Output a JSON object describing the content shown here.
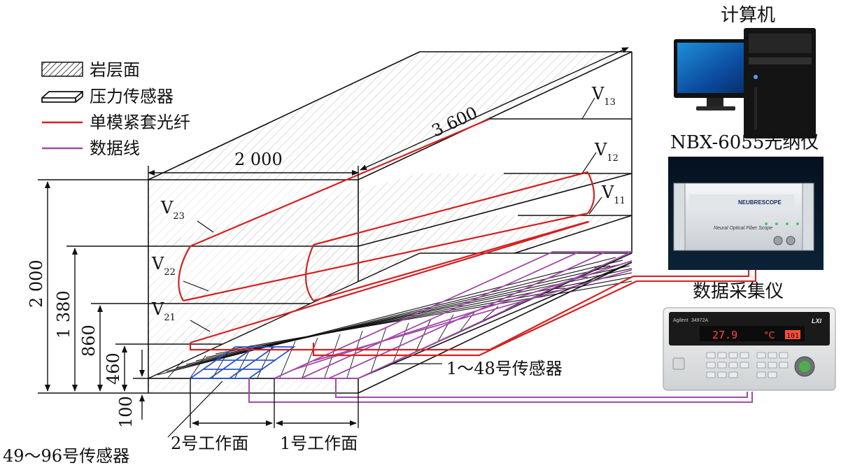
{
  "legend": {
    "rock_layer": "岩层面",
    "pressure_sensor": "压力传感器",
    "fiber": "单模紧套光纤",
    "data_line": "数据线"
  },
  "dimensions": {
    "width": "2 000",
    "length": "3 600",
    "height": "2 000",
    "h1380": "1 380",
    "h860": "860",
    "h460": "460",
    "h100": "100"
  },
  "fiber_labels": {
    "v13": {
      "main": "V",
      "sub": "13"
    },
    "v12": {
      "main": "V",
      "sub": "12"
    },
    "v11": {
      "main": "V",
      "sub": "11"
    },
    "v23": {
      "main": "V",
      "sub": "23"
    },
    "v22": {
      "main": "V",
      "sub": "22"
    },
    "v21": {
      "main": "V",
      "sub": "21"
    }
  },
  "sensor_labels": {
    "group1": "1～48号传感器",
    "group2": "49～96号传感器"
  },
  "workfaces": {
    "face2": "2号工作面",
    "face1": "1号工作面"
  },
  "devices": {
    "computer": "计算机",
    "analyzer": "NBX-6055光纳仪",
    "acquisition": "数据采集仪",
    "analyzer_brand": "NEUBRESCOPE",
    "analyzer_caption": "Neural Optical Fiber Scope",
    "daq_brand": "Agilent",
    "daq_model": "34972A",
    "daq_reading": "27.9",
    "daq_unit": "°C",
    "daq_channel": "101",
    "daq_lxi": "LXI"
  },
  "colors": {
    "fiber": "#d42020",
    "data_line": "#a24aa8",
    "sensor_blue": "#2a56c8",
    "hatch": "#b5b5b5"
  }
}
